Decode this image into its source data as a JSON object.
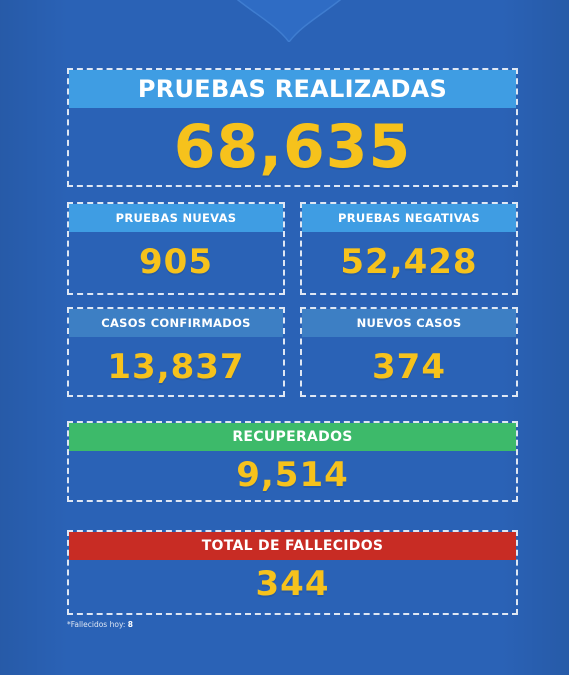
{
  "main": {
    "title": "PRUEBAS REALIZADAS",
    "value": "68,635"
  },
  "cards": {
    "pruebas_nuevas": {
      "label": "PRUEBAS NUEVAS",
      "value": "905"
    },
    "pruebas_negativas": {
      "label": "PRUEBAS NEGATIVAS",
      "value": "52,428"
    },
    "casos_confirmados": {
      "label": "CASOS CONFIRMADOS",
      "value": "13,837"
    },
    "nuevos_casos": {
      "label": "NUEVOS CASOS",
      "value": "374"
    },
    "recuperados": {
      "label": "RECUPERADOS",
      "value": "9,514"
    },
    "fallecidos": {
      "label": "TOTAL DE FALLECIDOS",
      "value": "344"
    }
  },
  "footnote": {
    "text": "*Fallecidos hoy: ",
    "value": "8"
  },
  "colors": {
    "background": "#2a62b6",
    "header_blue": "#3f9de3",
    "header_dark_blue": "#3d7fc4",
    "header_green": "#3dba6a",
    "header_red": "#c82c24",
    "value_yellow": "#f6c21c"
  }
}
